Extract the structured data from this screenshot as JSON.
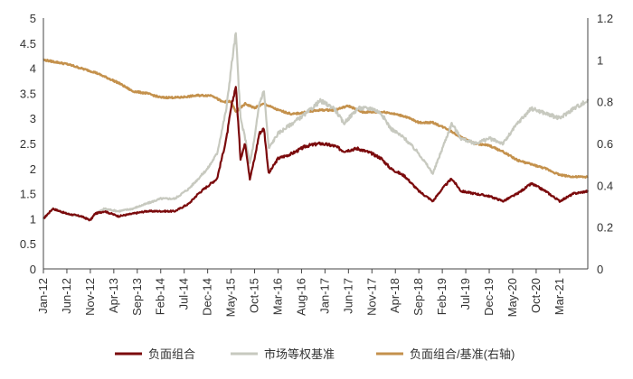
{
  "chart_data": {
    "type": "line",
    "left_axis": {
      "min": 0,
      "max": 5,
      "ticks": [
        "0",
        "0.5",
        "1",
        "1.5",
        "2",
        "2.5",
        "3",
        "3.5",
        "4",
        "4.5",
        "5"
      ]
    },
    "right_axis": {
      "min": 0,
      "max": 1.2,
      "ticks": [
        "0",
        "0.2",
        "0.4",
        "0.6",
        "0.8",
        "1",
        "1.2"
      ]
    },
    "x_range": [
      "2012-01",
      "2021-09"
    ],
    "x_ticks": [
      "Jan-12",
      "Jun-12",
      "Nov-12",
      "Apr-13",
      "Sep-13",
      "Feb-14",
      "Jul-14",
      "Dec-14",
      "May-15",
      "Oct-15",
      "Mar-16",
      "Aug-16",
      "Jan-17",
      "Jun-17",
      "Nov-17",
      "Apr-18",
      "Sep-18",
      "Feb-19",
      "Jul-19",
      "Dec-19",
      "May-20",
      "Oct-20",
      "Mar-21"
    ],
    "grid": false,
    "legend_position": "bottom",
    "series": [
      {
        "name": "负面组合",
        "axis": "left",
        "color": "#7b0a0c",
        "points": [
          [
            "2012-01",
            1.0
          ],
          [
            "2012-03",
            1.2
          ],
          [
            "2012-06",
            1.1
          ],
          [
            "2012-09",
            1.05
          ],
          [
            "2012-11",
            0.97
          ],
          [
            "2012-12",
            1.1
          ],
          [
            "2013-02",
            1.15
          ],
          [
            "2013-05",
            1.05
          ],
          [
            "2013-08",
            1.1
          ],
          [
            "2013-11",
            1.15
          ],
          [
            "2014-02",
            1.15
          ],
          [
            "2014-05",
            1.15
          ],
          [
            "2014-08",
            1.3
          ],
          [
            "2014-10",
            1.5
          ],
          [
            "2014-12",
            1.65
          ],
          [
            "2015-02",
            1.8
          ],
          [
            "2015-04",
            2.6
          ],
          [
            "2015-05",
            3.2
          ],
          [
            "2015-06",
            3.65
          ],
          [
            "2015-07",
            2.2
          ],
          [
            "2015-08",
            2.5
          ],
          [
            "2015-09",
            1.8
          ],
          [
            "2015-10",
            2.2
          ],
          [
            "2015-11",
            2.7
          ],
          [
            "2015-12",
            2.8
          ],
          [
            "2016-01",
            1.9
          ],
          [
            "2016-03",
            2.2
          ],
          [
            "2016-06",
            2.3
          ],
          [
            "2016-09",
            2.45
          ],
          [
            "2016-12",
            2.5
          ],
          [
            "2017-03",
            2.45
          ],
          [
            "2017-05",
            2.35
          ],
          [
            "2017-08",
            2.4
          ],
          [
            "2017-11",
            2.3
          ],
          [
            "2018-01",
            2.2
          ],
          [
            "2018-03",
            2.0
          ],
          [
            "2018-06",
            1.85
          ],
          [
            "2018-09",
            1.55
          ],
          [
            "2018-12",
            1.35
          ],
          [
            "2019-02",
            1.6
          ],
          [
            "2019-04",
            1.8
          ],
          [
            "2019-06",
            1.55
          ],
          [
            "2019-09",
            1.5
          ],
          [
            "2019-12",
            1.45
          ],
          [
            "2020-03",
            1.35
          ],
          [
            "2020-06",
            1.5
          ],
          [
            "2020-09",
            1.7
          ],
          [
            "2020-12",
            1.55
          ],
          [
            "2021-03",
            1.35
          ],
          [
            "2021-06",
            1.5
          ],
          [
            "2021-09",
            1.55
          ]
        ]
      },
      {
        "name": "市场等权基准",
        "axis": "left",
        "color": "#c7c9bf",
        "points": [
          [
            "2012-01",
            1.0
          ],
          [
            "2012-03",
            1.2
          ],
          [
            "2012-06",
            1.1
          ],
          [
            "2012-09",
            1.05
          ],
          [
            "2012-11",
            0.97
          ],
          [
            "2012-12",
            1.1
          ],
          [
            "2013-02",
            1.2
          ],
          [
            "2013-05",
            1.15
          ],
          [
            "2013-08",
            1.2
          ],
          [
            "2013-11",
            1.3
          ],
          [
            "2014-02",
            1.4
          ],
          [
            "2014-05",
            1.4
          ],
          [
            "2014-08",
            1.6
          ],
          [
            "2014-10",
            1.8
          ],
          [
            "2014-12",
            2.0
          ],
          [
            "2015-02",
            2.3
          ],
          [
            "2015-04",
            3.2
          ],
          [
            "2015-05",
            4.0
          ],
          [
            "2015-06",
            4.7
          ],
          [
            "2015-07",
            3.0
          ],
          [
            "2015-08",
            2.6
          ],
          [
            "2015-09",
            2.1
          ],
          [
            "2015-10",
            2.6
          ],
          [
            "2015-11",
            3.3
          ],
          [
            "2015-12",
            3.55
          ],
          [
            "2016-01",
            2.4
          ],
          [
            "2016-03",
            2.7
          ],
          [
            "2016-06",
            2.9
          ],
          [
            "2016-09",
            3.1
          ],
          [
            "2016-12",
            3.35
          ],
          [
            "2017-03",
            3.2
          ],
          [
            "2017-05",
            2.9
          ],
          [
            "2017-08",
            3.2
          ],
          [
            "2017-11",
            3.2
          ],
          [
            "2018-01",
            3.1
          ],
          [
            "2018-03",
            2.8
          ],
          [
            "2018-06",
            2.6
          ],
          [
            "2018-09",
            2.3
          ],
          [
            "2018-12",
            1.9
          ],
          [
            "2019-02",
            2.4
          ],
          [
            "2019-04",
            2.9
          ],
          [
            "2019-06",
            2.6
          ],
          [
            "2019-09",
            2.5
          ],
          [
            "2019-12",
            2.6
          ],
          [
            "2020-03",
            2.5
          ],
          [
            "2020-06",
            2.9
          ],
          [
            "2020-09",
            3.2
          ],
          [
            "2020-12",
            3.1
          ],
          [
            "2021-03",
            3.0
          ],
          [
            "2021-06",
            3.2
          ],
          [
            "2021-09",
            3.35
          ]
        ]
      },
      {
        "name": "负面组合/基准(右轴)",
        "axis": "right",
        "color": "#c4914c",
        "points": [
          [
            "2012-01",
            1.0
          ],
          [
            "2012-06",
            0.98
          ],
          [
            "2012-12",
            0.94
          ],
          [
            "2013-05",
            0.89
          ],
          [
            "2013-08",
            0.85
          ],
          [
            "2013-11",
            0.84
          ],
          [
            "2014-02",
            0.82
          ],
          [
            "2014-06",
            0.82
          ],
          [
            "2014-10",
            0.83
          ],
          [
            "2015-01",
            0.83
          ],
          [
            "2015-03",
            0.8
          ],
          [
            "2015-05",
            0.8
          ],
          [
            "2015-06",
            0.75
          ],
          [
            "2015-08",
            0.79
          ],
          [
            "2015-10",
            0.77
          ],
          [
            "2015-12",
            0.79
          ],
          [
            "2016-03",
            0.76
          ],
          [
            "2016-06",
            0.74
          ],
          [
            "2016-09",
            0.75
          ],
          [
            "2016-12",
            0.76
          ],
          [
            "2017-03",
            0.76
          ],
          [
            "2017-06",
            0.78
          ],
          [
            "2017-09",
            0.75
          ],
          [
            "2017-11",
            0.75
          ],
          [
            "2018-02",
            0.75
          ],
          [
            "2018-06",
            0.73
          ],
          [
            "2018-09",
            0.7
          ],
          [
            "2018-12",
            0.7
          ],
          [
            "2019-03",
            0.67
          ],
          [
            "2019-06",
            0.63
          ],
          [
            "2019-09",
            0.6
          ],
          [
            "2019-12",
            0.59
          ],
          [
            "2020-03",
            0.56
          ],
          [
            "2020-06",
            0.52
          ],
          [
            "2020-09",
            0.5
          ],
          [
            "2020-12",
            0.48
          ],
          [
            "2021-03",
            0.45
          ],
          [
            "2021-06",
            0.44
          ],
          [
            "2021-09",
            0.44
          ]
        ]
      }
    ]
  }
}
